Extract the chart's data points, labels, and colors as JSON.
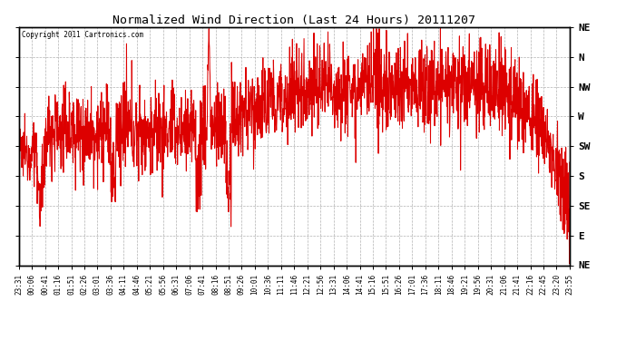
{
  "title": "Normalized Wind Direction (Last 24 Hours) 20111207",
  "copyright": "Copyright 2011 Cartronics.com",
  "line_color": "#dd0000",
  "background_color": "#ffffff",
  "grid_color": "#aaaaaa",
  "y_labels_right": [
    "NE",
    "E",
    "SE",
    "S",
    "SW",
    "W",
    "NW",
    "N",
    "NE"
  ],
  "y_values": [
    0,
    1,
    2,
    3,
    4,
    5,
    6,
    7,
    8
  ],
  "x_tick_labels": [
    "23:31",
    "00:06",
    "00:41",
    "01:16",
    "01:51",
    "02:26",
    "03:01",
    "03:36",
    "04:11",
    "04:46",
    "05:21",
    "05:56",
    "06:31",
    "07:06",
    "07:41",
    "08:16",
    "08:51",
    "09:26",
    "10:01",
    "10:36",
    "11:11",
    "11:46",
    "12:21",
    "12:56",
    "13:31",
    "14:06",
    "14:41",
    "15:16",
    "15:51",
    "16:26",
    "17:01",
    "17:36",
    "18:11",
    "18:46",
    "19:21",
    "19:56",
    "20:31",
    "21:06",
    "21:41",
    "22:16",
    "22:45",
    "23:20",
    "23:55"
  ],
  "ylim": [
    0,
    8
  ],
  "figsize": [
    6.9,
    3.75
  ],
  "dpi": 100,
  "seed": 12345
}
